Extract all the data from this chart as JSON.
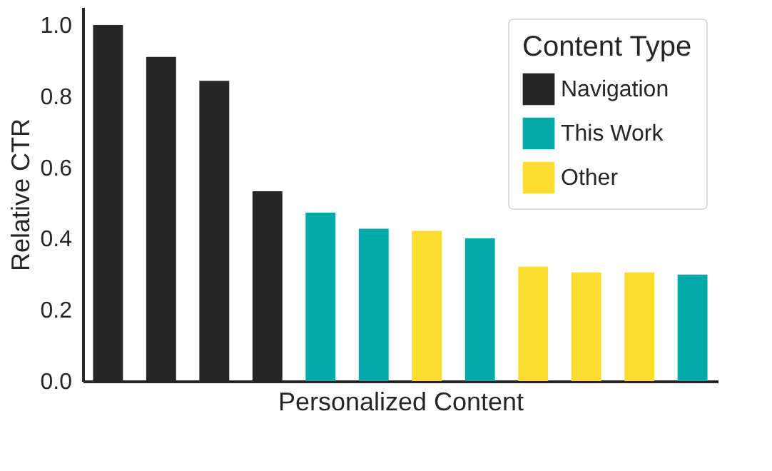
{
  "chart_data": {
    "type": "bar",
    "xlabel": "Personalized Content",
    "ylabel": "Relative CTR",
    "legend_title": "Content Type",
    "categories": [
      null,
      null,
      null,
      null,
      null,
      null,
      null,
      null,
      null,
      null,
      null,
      null
    ],
    "series": [
      {
        "name": "Navigation",
        "color": "#262626",
        "values": [
          1.0,
          0.91,
          0.843,
          0.533,
          null,
          null,
          null,
          null,
          null,
          null,
          null,
          null
        ]
      },
      {
        "name": "This Work",
        "color": "#00aaa8",
        "values": [
          null,
          null,
          null,
          null,
          0.473,
          0.428,
          null,
          0.401,
          null,
          null,
          null,
          0.299
        ]
      },
      {
        "name": "Other",
        "color": "#fddc30",
        "values": [
          null,
          null,
          null,
          null,
          null,
          null,
          0.422,
          null,
          0.321,
          0.305,
          0.305,
          null
        ]
      }
    ],
    "ylim": [
      0,
      1.05
    ],
    "yticks": [
      {
        "value": 0,
        "label": "0.0"
      },
      0.2,
      0.4,
      0.6,
      0.8,
      {
        "value": 1,
        "label": "1.0"
      }
    ],
    "grid": false,
    "legend": "top right",
    "tick_labels": "y"
  }
}
